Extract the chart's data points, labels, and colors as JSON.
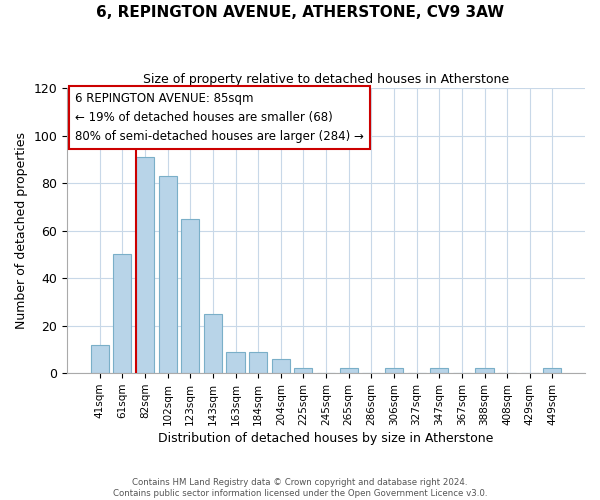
{
  "title": "6, REPINGTON AVENUE, ATHERSTONE, CV9 3AW",
  "subtitle": "Size of property relative to detached houses in Atherstone",
  "xlabel": "Distribution of detached houses by size in Atherstone",
  "ylabel": "Number of detached properties",
  "bar_labels": [
    "41sqm",
    "61sqm",
    "82sqm",
    "102sqm",
    "123sqm",
    "143sqm",
    "163sqm",
    "184sqm",
    "204sqm",
    "225sqm",
    "245sqm",
    "265sqm",
    "286sqm",
    "306sqm",
    "327sqm",
    "347sqm",
    "367sqm",
    "388sqm",
    "408sqm",
    "429sqm",
    "449sqm"
  ],
  "bar_values": [
    12,
    50,
    91,
    83,
    65,
    25,
    9,
    9,
    6,
    2,
    0,
    2,
    0,
    2,
    0,
    2,
    0,
    2,
    0,
    0,
    2
  ],
  "bar_color": "#b8d4e8",
  "bar_edge_color": "#7aafc8",
  "vline_index": 2,
  "vline_color": "#cc0000",
  "ylim": [
    0,
    120
  ],
  "yticks": [
    0,
    20,
    40,
    60,
    80,
    100,
    120
  ],
  "annotation_title": "6 REPINGTON AVENUE: 85sqm",
  "annotation_line1": "← 19% of detached houses are smaller (68)",
  "annotation_line2": "80% of semi-detached houses are larger (284) →",
  "annotation_box_color": "#ffffff",
  "annotation_box_edge": "#cc0000",
  "footer_line1": "Contains HM Land Registry data © Crown copyright and database right 2024.",
  "footer_line2": "Contains public sector information licensed under the Open Government Licence v3.0.",
  "background_color": "#ffffff",
  "grid_color": "#c8d8e8"
}
